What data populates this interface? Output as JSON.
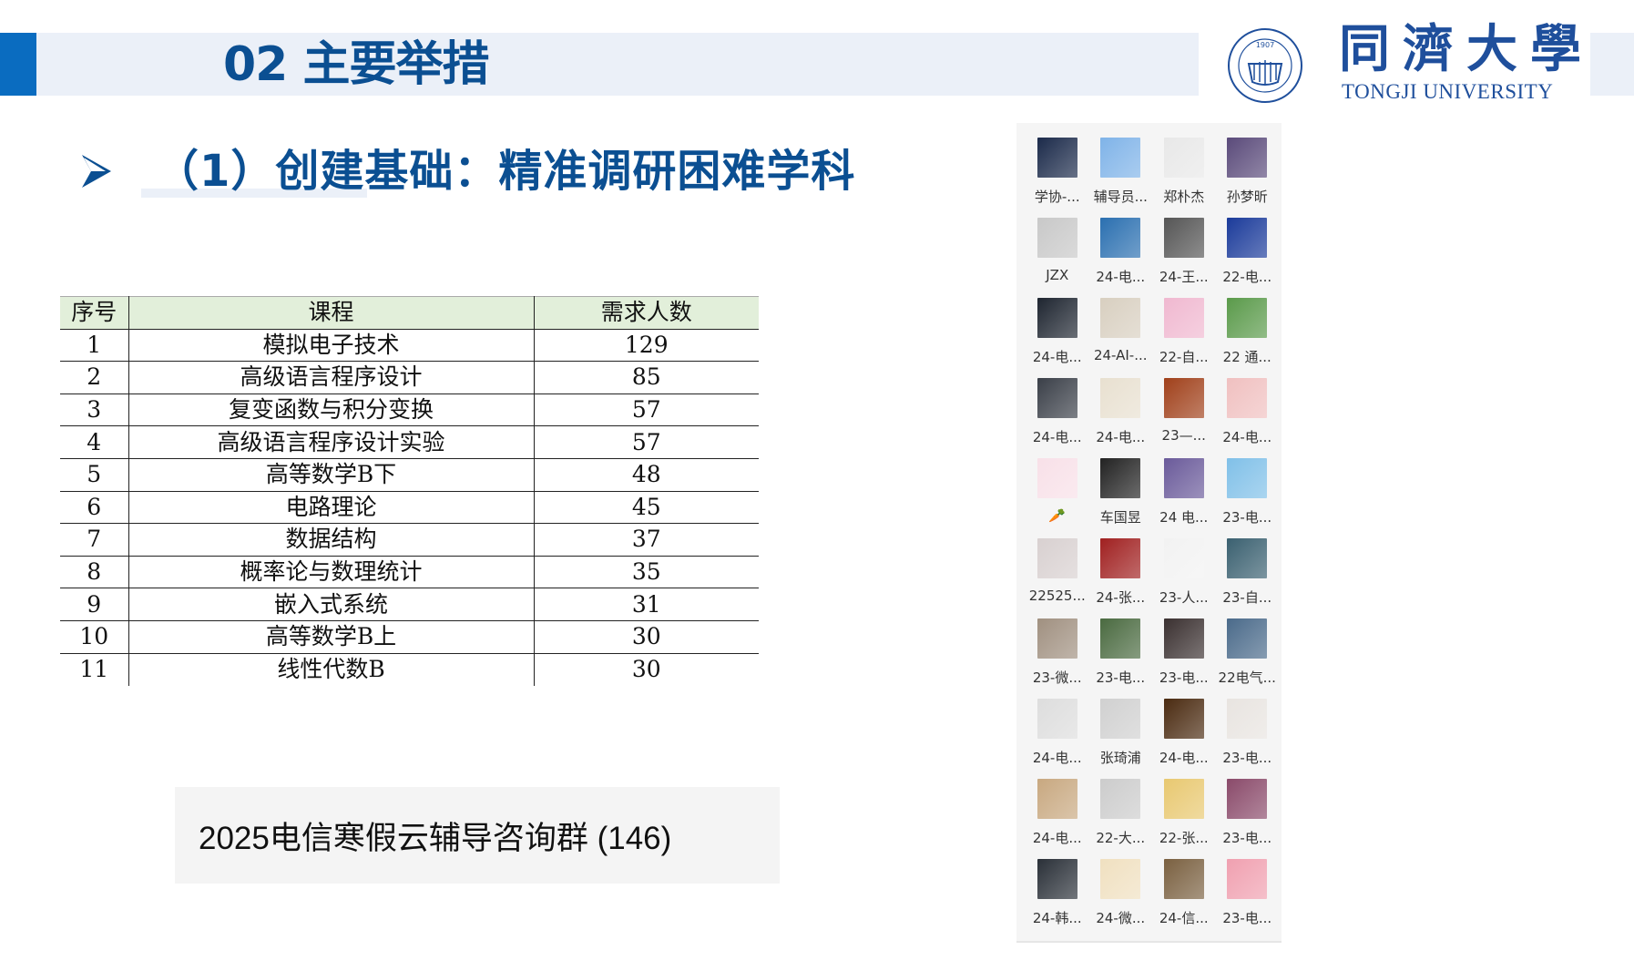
{
  "header": {
    "title": "02 主要举措",
    "logo_cn": "同濟大學",
    "logo_en": "TONGJI UNIVERSITY",
    "seal_year": "1907"
  },
  "subtitle": "（1）创建基础：精准调研困难学科",
  "table": {
    "headers": [
      "序号",
      "课程",
      "需求人数"
    ],
    "rows": [
      [
        "1",
        "模拟电子技术",
        "129"
      ],
      [
        "2",
        "高级语言程序设计",
        "85"
      ],
      [
        "3",
        "复变函数与积分变换",
        "57"
      ],
      [
        "4",
        "高级语言程序设计实验",
        "57"
      ],
      [
        "5",
        "高等数学B下",
        "48"
      ],
      [
        "6",
        "电路理论",
        "45"
      ],
      [
        "7",
        "数据结构",
        "37"
      ],
      [
        "8",
        "概率论与数理统计",
        "35"
      ],
      [
        "9",
        "嵌入式系统",
        "31"
      ],
      [
        "10",
        "高等数学B上",
        "30"
      ],
      [
        "11",
        "线性代数B",
        "30"
      ]
    ]
  },
  "group_name": "2025电信寒假云辅导咨询群 (146)",
  "members": [
    {
      "name": "学协-...",
      "color": "#1b2a4a"
    },
    {
      "name": "辅导员...",
      "color": "#7fb3e8"
    },
    {
      "name": "郑朴杰",
      "color": "#e8e8e8"
    },
    {
      "name": "孙梦昕",
      "color": "#5a4a7a"
    },
    {
      "name": "JZX",
      "color": "#c8c8c8"
    },
    {
      "name": "24-电...",
      "color": "#2a6fb0"
    },
    {
      "name": "24-王...",
      "color": "#555555"
    },
    {
      "name": "22-电...",
      "color": "#1a3a9a"
    },
    {
      "name": "24-电...",
      "color": "#1e2530"
    },
    {
      "name": "24-AI-...",
      "color": "#d8cfc0"
    },
    {
      "name": "22-自...",
      "color": "#f0b8d0"
    },
    {
      "name": "22 通...",
      "color": "#5a9a4a"
    },
    {
      "name": "24-电...",
      "color": "#3a3f48"
    },
    {
      "name": "24-电...",
      "color": "#e8e0d0"
    },
    {
      "name": "23—...",
      "color": "#a0401a"
    },
    {
      "name": "24-电...",
      "color": "#f0c0c0"
    },
    {
      "name": "🥕",
      "color": "#f8e0e8"
    },
    {
      "name": "车国昱",
      "color": "#222222"
    },
    {
      "name": "24 电...",
      "color": "#6a5a9a"
    },
    {
      "name": "23-电...",
      "color": "#80c0e8"
    },
    {
      "name": "22525...",
      "color": "#d8d0d0"
    },
    {
      "name": "24-张...",
      "color": "#a02020"
    },
    {
      "name": "23-人...",
      "color": "#f2f2f2"
    },
    {
      "name": "23-自...",
      "color": "#3a6070"
    },
    {
      "name": "23-微...",
      "color": "#a09080"
    },
    {
      "name": "23-电...",
      "color": "#4a6a40"
    },
    {
      "name": "23-电...",
      "color": "#3a3030"
    },
    {
      "name": "22电气...",
      "color": "#4a6a8a"
    },
    {
      "name": "24-电...",
      "color": "#dddddd"
    },
    {
      "name": "张琦浦",
      "color": "#d0d0d0"
    },
    {
      "name": "24-电...",
      "color": "#4a2a10"
    },
    {
      "name": "23-电...",
      "color": "#e8e4e0"
    },
    {
      "name": "24-电...",
      "color": "#c8a880"
    },
    {
      "name": "22-大...",
      "color": "#cccccc"
    },
    {
      "name": "22-张...",
      "color": "#e8c870"
    },
    {
      "name": "23-电...",
      "color": "#8a4a6a"
    },
    {
      "name": "24-韩...",
      "color": "#2a3038"
    },
    {
      "name": "24-微...",
      "color": "#f0e0c0"
    },
    {
      "name": "24-信...",
      "color": "#7a6040"
    },
    {
      "name": "23-电...",
      "color": "#f0a0b0"
    }
  ],
  "colors": {
    "accent": "#0a6cc0",
    "title": "#0b4f92",
    "header_bg": "#ebf0f8",
    "table_header_bg": "#e2efda"
  }
}
